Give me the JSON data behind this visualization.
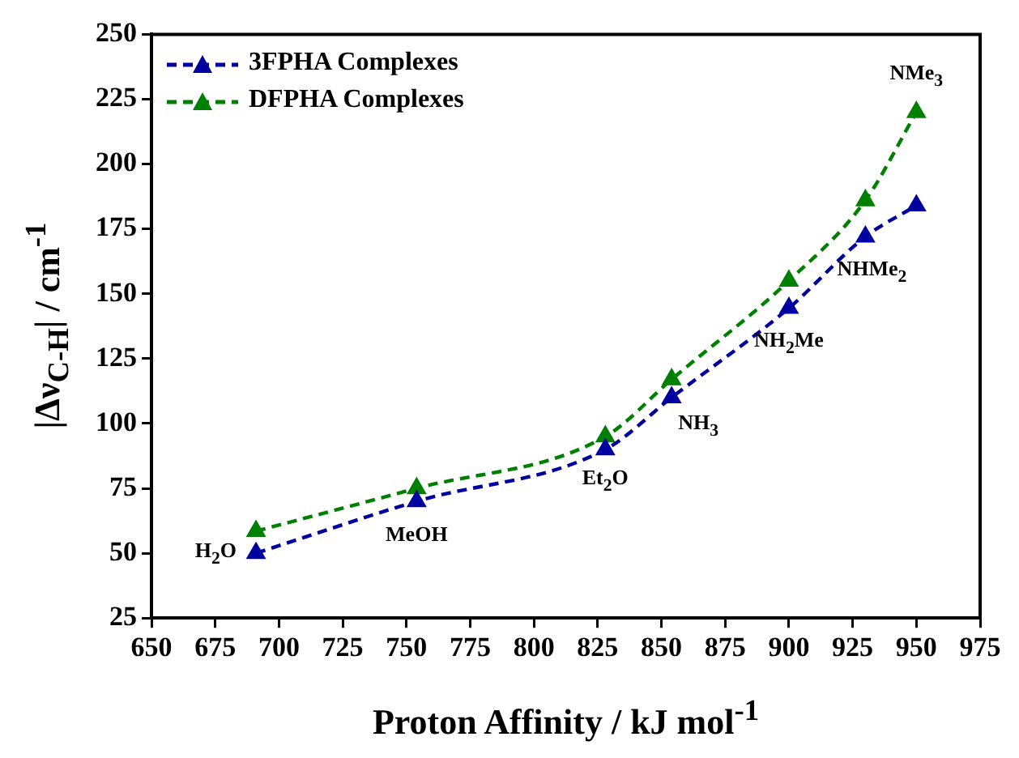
{
  "chart_data": {
    "type": "line",
    "xlabel": "Proton Affinity / kJ mol$^{-1}$",
    "ylabel": "|Δν$_{C-H}$| / cm$^{-1}$",
    "x": [
      691,
      754,
      828,
      854,
      900,
      930,
      950
    ],
    "series": [
      {
        "name": "3FPHA Complexes",
        "color": "#0000a0",
        "values": [
          50,
          70,
          90,
          110,
          144.5,
          172,
          184
        ]
      },
      {
        "name": "DFPHA Complexes",
        "color": "#008000",
        "values": [
          58.5,
          75,
          95,
          117,
          155,
          186,
          220
        ]
      }
    ],
    "xlim": [
      650,
      975
    ],
    "xticks": [
      650,
      675,
      700,
      725,
      750,
      775,
      800,
      825,
      850,
      875,
      900,
      925,
      950,
      975
    ],
    "ylim": [
      25,
      250
    ],
    "yticks": [
      25,
      50,
      75,
      100,
      125,
      150,
      175,
      200,
      225,
      250
    ],
    "annotations": [
      {
        "text": "H$_{2}$O",
        "x": 691,
        "y": 50
      },
      {
        "text": "MeOH",
        "x": 754,
        "y": 70
      },
      {
        "text": "Et$_{2}$O",
        "x": 828,
        "y": 90
      },
      {
        "text": "NH$_{3}$",
        "x": 854,
        "y": 110
      },
      {
        "text": "NH$_{2}$Me",
        "x": 900,
        "y": 144.5
      },
      {
        "text": "NHMe$_{2}$",
        "x": 930,
        "y": 172
      },
      {
        "text": "NMe$_{3}$",
        "x": 950,
        "y": 220
      }
    ],
    "grid": false,
    "legend": "top left",
    "marker": "triangle",
    "line_style": "dashed"
  }
}
